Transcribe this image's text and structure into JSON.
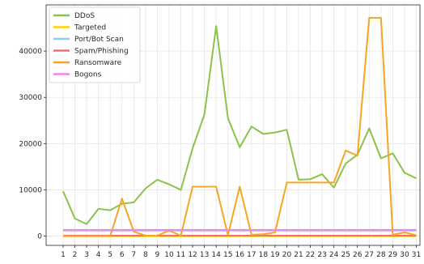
{
  "chart_data": {
    "type": "line",
    "categories": [
      "1",
      "2",
      "3",
      "4",
      "5",
      "6",
      "7",
      "8",
      "9",
      "10",
      "11",
      "12",
      "13",
      "14",
      "15",
      "16",
      "17",
      "18",
      "19",
      "20",
      "21",
      "22",
      "23",
      "24",
      "25",
      "26",
      "27",
      "28",
      "29",
      "30",
      "31"
    ],
    "ylim": [
      -2000,
      50000
    ],
    "yticks": [
      0,
      10000,
      20000,
      30000,
      40000
    ],
    "ytick_labels": [
      "0",
      "10000",
      "20000",
      "30000",
      "40000"
    ],
    "grid": true,
    "legend_position": "top-left",
    "series": [
      {
        "name": "DDoS",
        "color": "#8bc34a",
        "values": [
          9700,
          3800,
          2600,
          5900,
          5600,
          7000,
          7300,
          10300,
          12200,
          11200,
          10000,
          19000,
          26300,
          45400,
          25500,
          19200,
          23700,
          22100,
          22400,
          23000,
          12200,
          12300,
          13400,
          10500,
          15700,
          17600,
          23300,
          16800,
          17900,
          13700,
          12500
        ]
      },
      {
        "name": "Targeted",
        "color": "#ffd400",
        "values": [
          0,
          0,
          0,
          0,
          0,
          0,
          0,
          0,
          0,
          0,
          0,
          0,
          0,
          0,
          0,
          0,
          0,
          0,
          0,
          0,
          0,
          0,
          0,
          0,
          0,
          0,
          0,
          0,
          0,
          0,
          0
        ]
      },
      {
        "name": "Port/Bot Scan",
        "color": "#8ecdf0",
        "values": [
          1200,
          1200,
          1200,
          1200,
          1200,
          1200,
          1200,
          1200,
          1200,
          1200,
          1200,
          1200,
          1200,
          1200,
          1200,
          1200,
          1200,
          1200,
          1200,
          1200,
          1200,
          1200,
          1200,
          1200,
          1200,
          1200,
          1200,
          1200,
          1200,
          1200,
          1200
        ]
      },
      {
        "name": "Spam/Phishing",
        "color": "#f07070",
        "values": [
          100,
          100,
          100,
          100,
          100,
          100,
          100,
          100,
          100,
          100,
          100,
          100,
          100,
          100,
          100,
          100,
          100,
          100,
          100,
          100,
          100,
          100,
          100,
          100,
          100,
          100,
          100,
          100,
          100,
          100,
          100
        ]
      },
      {
        "name": "Ransomware",
        "color": "#f5a623",
        "values": [
          0,
          0,
          0,
          0,
          0,
          8100,
          1000,
          100,
          100,
          1200,
          100,
          10700,
          10700,
          10700,
          200,
          10700,
          300,
          400,
          800,
          11600,
          11600,
          11600,
          11600,
          11600,
          18500,
          17400,
          47200,
          47200,
          300,
          800,
          200
        ]
      },
      {
        "name": "Bogons",
        "color": "#ee82ee",
        "values": [
          1350,
          1350,
          1350,
          1350,
          1350,
          1350,
          1350,
          1350,
          1350,
          1350,
          1350,
          1350,
          1350,
          1350,
          1350,
          1350,
          1350,
          1350,
          1350,
          1350,
          1350,
          1350,
          1350,
          1350,
          1350,
          1350,
          1350,
          1350,
          1350,
          1350,
          1350
        ]
      }
    ]
  }
}
